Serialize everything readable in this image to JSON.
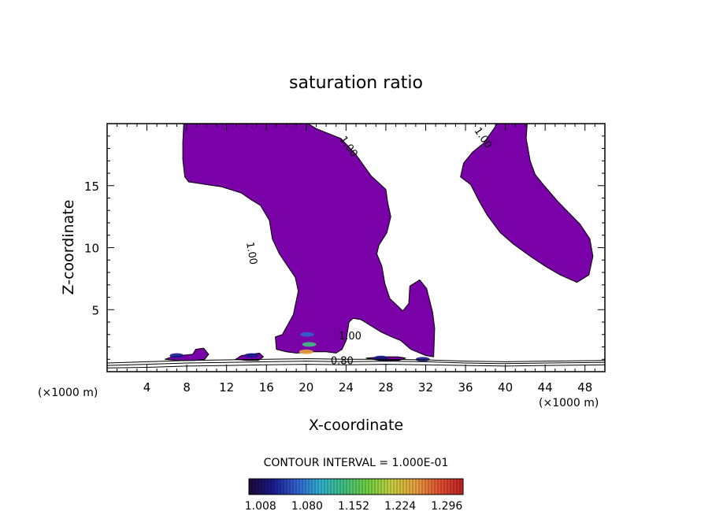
{
  "chart_data": {
    "type": "contour",
    "title": "saturation ratio",
    "xlabel": "X-coordinate",
    "ylabel": "Z-coordinate",
    "x_unit_left": "(×1000 m)",
    "x_unit_right": "(×1000 m)",
    "xlim": [
      0,
      50
    ],
    "ylim": [
      0,
      20
    ],
    "xticks": [
      "4",
      "8",
      "12",
      "16",
      "20",
      "24",
      "28",
      "32",
      "36",
      "40",
      "44",
      "48"
    ],
    "xtick_values": [
      4,
      8,
      12,
      16,
      20,
      24,
      28,
      32,
      36,
      40,
      44,
      48
    ],
    "yticks": [
      "5",
      "10",
      "15"
    ],
    "ytick_values": [
      5,
      10,
      15
    ],
    "contour_interval": "CONTOUR INTERVAL = 1.000E-01",
    "contour_labels": [
      {
        "text": "1.00",
        "x": 24.0,
        "y": 18.0
      },
      {
        "text": "1.00",
        "x": 37.5,
        "y": 18.7
      },
      {
        "text": "1.00",
        "x": 14.2,
        "y": 9.5
      },
      {
        "text": "1.00",
        "x": 24.4,
        "y": 2.6
      },
      {
        "text": "0.80",
        "x": 23.6,
        "y": 0.6
      }
    ],
    "colorbar": {
      "ticks": [
        "1.008",
        "1.080",
        "1.152",
        "1.224",
        "1.296"
      ],
      "min": 1.0,
      "max": 1.33,
      "colors": [
        "#1a0a33",
        "#1a1a8c",
        "#3060d0",
        "#30b0d0",
        "#40c080",
        "#70d040",
        "#c8d040",
        "#e8a040",
        "#e05030",
        "#c02020"
      ]
    },
    "fill_color": "#7a00a8",
    "regions": [
      {
        "name": "central-plume",
        "points": [
          [
            7.7,
            20
          ],
          [
            20.2,
            20
          ],
          [
            21,
            19.6
          ],
          [
            23.5,
            18.8
          ],
          [
            25,
            17.5
          ],
          [
            26.5,
            15.8
          ],
          [
            28,
            14.7
          ],
          [
            28.2,
            13.6
          ],
          [
            28.5,
            12.5
          ],
          [
            28.1,
            11.2
          ],
          [
            27.3,
            10.2
          ],
          [
            27.1,
            9.5
          ],
          [
            27.6,
            8.5
          ],
          [
            27.9,
            7.1
          ],
          [
            28.4,
            5.9
          ],
          [
            29.7,
            4.9
          ],
          [
            30.3,
            5.5
          ],
          [
            30.4,
            6.9
          ],
          [
            31.4,
            7.4
          ],
          [
            32.1,
            6.7
          ],
          [
            32.7,
            4.8
          ],
          [
            32.9,
            3.5
          ],
          [
            32.8,
            1.2
          ],
          [
            32,
            1.3
          ],
          [
            30.5,
            1.8
          ],
          [
            29.5,
            2.5
          ],
          [
            28.6,
            2.8
          ],
          [
            27.5,
            3.2
          ],
          [
            26.5,
            3.7
          ],
          [
            25.5,
            4.2
          ],
          [
            24.7,
            4.3
          ],
          [
            24.3,
            4.0
          ],
          [
            24.0,
            2.5
          ],
          [
            23.6,
            1.8
          ],
          [
            23.0,
            1.5
          ],
          [
            22.0,
            1.6
          ],
          [
            20.7,
            1.6
          ],
          [
            19.0,
            1.5
          ],
          [
            18.0,
            1.6
          ],
          [
            17.0,
            1.8
          ],
          [
            16.9,
            2.8
          ],
          [
            17.6,
            3.0
          ],
          [
            18.7,
            4.6
          ],
          [
            19.2,
            6.5
          ],
          [
            18.9,
            7.6
          ],
          [
            17.3,
            9.5
          ],
          [
            16.6,
            10.7
          ],
          [
            16.3,
            12.2
          ],
          [
            15.4,
            13.4
          ],
          [
            14.4,
            13.9
          ],
          [
            13.5,
            14.4
          ],
          [
            11.5,
            14.9
          ],
          [
            9.9,
            15.1
          ],
          [
            8.2,
            15.3
          ],
          [
            7.8,
            15.7
          ],
          [
            7.6,
            17.1
          ],
          [
            7.6,
            18.5
          ]
        ]
      },
      {
        "name": "right-plume",
        "points": [
          [
            39.2,
            20
          ],
          [
            42.2,
            20
          ],
          [
            42.1,
            18.8
          ],
          [
            42.5,
            17.0
          ],
          [
            43.0,
            15.9
          ],
          [
            43.8,
            15.1
          ],
          [
            45.3,
            13.7
          ],
          [
            47.5,
            11.9
          ],
          [
            48.5,
            10.7
          ],
          [
            48.8,
            9.3
          ],
          [
            48.4,
            7.8
          ],
          [
            47.2,
            7.2
          ],
          [
            45.5,
            7.8
          ],
          [
            44.0,
            8.5
          ],
          [
            42.5,
            9.3
          ],
          [
            40.8,
            10.3
          ],
          [
            39.5,
            11.2
          ],
          [
            38.2,
            12.6
          ],
          [
            37.4,
            13.7
          ],
          [
            36.5,
            15.1
          ],
          [
            35.5,
            15.7
          ],
          [
            35.8,
            16.8
          ],
          [
            36.7,
            17.7
          ],
          [
            37.8,
            18.4
          ]
        ]
      },
      {
        "name": "left-cap",
        "points": [
          [
            5.8,
            1.0
          ],
          [
            6.5,
            1.2
          ],
          [
            7.4,
            1.3
          ],
          [
            8.6,
            1.4
          ],
          [
            8.9,
            1.8
          ],
          [
            9.7,
            1.9
          ],
          [
            10.2,
            1.4
          ],
          [
            9.8,
            1.0
          ],
          [
            8.8,
            0.9
          ],
          [
            7.2,
            0.9
          ]
        ]
      },
      {
        "name": "mid-cap",
        "points": [
          [
            12.9,
            1.0
          ],
          [
            13.5,
            1.3
          ],
          [
            14.5,
            1.4
          ],
          [
            15.3,
            1.5
          ],
          [
            15.7,
            1.2
          ],
          [
            15.2,
            0.9
          ],
          [
            14.0,
            0.9
          ]
        ]
      },
      {
        "name": "right-cap",
        "points": [
          [
            26.0,
            1.1
          ],
          [
            27.8,
            1.2
          ],
          [
            29.2,
            1.2
          ],
          [
            30.0,
            1.1
          ],
          [
            29.3,
            0.9
          ],
          [
            27.4,
            0.9
          ]
        ]
      }
    ],
    "contour_lines": [
      {
        "name": "level-0.80",
        "points": [
          [
            0,
            0.3
          ],
          [
            4,
            0.35
          ],
          [
            8,
            0.45
          ],
          [
            12,
            0.5
          ],
          [
            16,
            0.55
          ],
          [
            20,
            0.6
          ],
          [
            24,
            0.55
          ],
          [
            28,
            0.6
          ],
          [
            32,
            0.55
          ],
          [
            36,
            0.5
          ],
          [
            40,
            0.45
          ],
          [
            44,
            0.5
          ],
          [
            50,
            0.55
          ]
        ]
      },
      {
        "name": "level-0.90",
        "points": [
          [
            0,
            0.5
          ],
          [
            4,
            0.6
          ],
          [
            8,
            0.7
          ],
          [
            12,
            0.75
          ],
          [
            16,
            0.8
          ],
          [
            20,
            0.85
          ],
          [
            24,
            0.8
          ],
          [
            28,
            0.85
          ],
          [
            32,
            0.8
          ],
          [
            36,
            0.7
          ],
          [
            40,
            0.65
          ],
          [
            44,
            0.7
          ],
          [
            50,
            0.75
          ]
        ]
      },
      {
        "name": "level-0.95",
        "points": [
          [
            0,
            0.7
          ],
          [
            4,
            0.8
          ],
          [
            8,
            0.9
          ],
          [
            12,
            0.95
          ],
          [
            16,
            1.0
          ],
          [
            20,
            1.05
          ],
          [
            24,
            1.0
          ],
          [
            28,
            1.0
          ],
          [
            32,
            0.95
          ],
          [
            36,
            0.85
          ],
          [
            40,
            0.8
          ],
          [
            44,
            0.85
          ],
          [
            50,
            0.9
          ]
        ]
      }
    ],
    "colored_patches": [
      {
        "x": 7.0,
        "y": 1.3,
        "value": 1.05
      },
      {
        "x": 14.5,
        "y": 1.3,
        "value": 1.04
      },
      {
        "x": 20.0,
        "y": 1.6,
        "value": 1.25
      },
      {
        "x": 20.3,
        "y": 2.2,
        "value": 1.15
      },
      {
        "x": 20.1,
        "y": 3.0,
        "value": 1.08
      },
      {
        "x": 27.5,
        "y": 1.1,
        "value": 1.06
      },
      {
        "x": 31.7,
        "y": 1.0,
        "value": 1.05
      }
    ]
  }
}
